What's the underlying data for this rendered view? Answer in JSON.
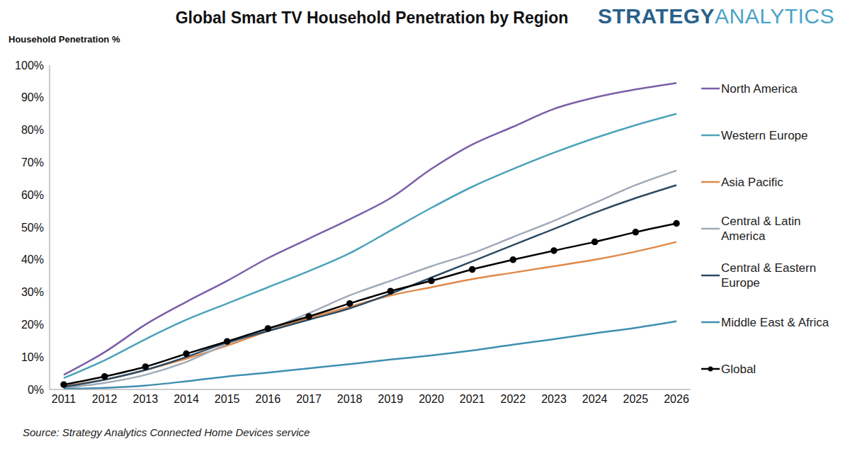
{
  "chart_data": {
    "type": "line",
    "title": "Global Smart TV Household Penetration by Region",
    "logo": [
      "STRATEGY",
      "ANALYTICS"
    ],
    "y_label": "Household Penetration %",
    "source": "Source: Strategy Analytics Connected Home Devices service",
    "categories": [
      "2011",
      "2012",
      "2013",
      "2014",
      "2015",
      "2016",
      "2017",
      "2018",
      "2019",
      "2020",
      "2021",
      "2022",
      "2023",
      "2024",
      "2025",
      "2026"
    ],
    "series": [
      {
        "name": "North America",
        "color": "#7b5ea7",
        "marker": "none",
        "values": [
          4.5,
          11.5,
          20,
          27,
          33.5,
          40.5,
          46.5,
          52.5,
          59,
          68,
          75.5,
          81,
          86.5,
          90,
          92.5,
          94.5
        ]
      },
      {
        "name": "Western Europe",
        "color": "#4aa3b8",
        "marker": "none",
        "values": [
          3.5,
          9,
          15.5,
          21.5,
          26.5,
          31.5,
          36.5,
          42,
          49,
          56,
          62.5,
          68,
          73,
          77.5,
          81.5,
          85
        ]
      },
      {
        "name": "Asia Pacific",
        "color": "#e0894a",
        "marker": "none",
        "values": [
          1,
          3,
          6,
          9.5,
          13.5,
          18,
          22,
          25.5,
          29,
          31.5,
          34,
          36,
          38,
          40,
          42.5,
          45.5
        ]
      },
      {
        "name": "Central & Latin America",
        "color": "#a0aab8",
        "marker": "none",
        "values": [
          0.5,
          2,
          4.5,
          8.5,
          14,
          18.5,
          23.5,
          29,
          33.5,
          38,
          42,
          47,
          52,
          57.5,
          63,
          67.5
        ]
      },
      {
        "name": "Central & Eastern Europe",
        "color": "#2e4a62",
        "marker": "none",
        "values": [
          0.8,
          3,
          6,
          10,
          14.5,
          18,
          21.5,
          25,
          29.5,
          34.5,
          39.5,
          44.5,
          49.5,
          54.5,
          59,
          63
        ]
      },
      {
        "name": "Middle East & Africa",
        "color": "#3f8fb0",
        "marker": "none",
        "values": [
          0.2,
          0.5,
          1.2,
          2.5,
          4,
          5.2,
          6.5,
          7.8,
          9.2,
          10.5,
          12,
          13.8,
          15.5,
          17.3,
          19,
          21
        ]
      },
      {
        "name": "Global",
        "color": "#000000",
        "marker": "circle",
        "values": [
          1.5,
          4,
          7,
          11,
          14.8,
          18.8,
          22.5,
          26.5,
          30.3,
          33.5,
          37,
          40,
          42.8,
          45.5,
          48.5,
          51.2
        ]
      }
    ],
    "ylim": [
      0,
      100
    ],
    "yticks": [
      {
        "value": 0,
        "label": "0%"
      },
      {
        "value": 10,
        "label": "10%"
      },
      {
        "value": 20,
        "label": "20%"
      },
      {
        "value": 30,
        "label": "30%"
      },
      {
        "value": 40,
        "label": "40%"
      },
      {
        "value": 50,
        "label": "50%"
      },
      {
        "value": 60,
        "label": "60%"
      },
      {
        "value": 70,
        "label": "70%"
      },
      {
        "value": 80,
        "label": "80%"
      },
      {
        "value": 90,
        "label": "90%"
      },
      {
        "value": 100,
        "label": "100%"
      }
    ],
    "grid": false,
    "legend": "right"
  }
}
